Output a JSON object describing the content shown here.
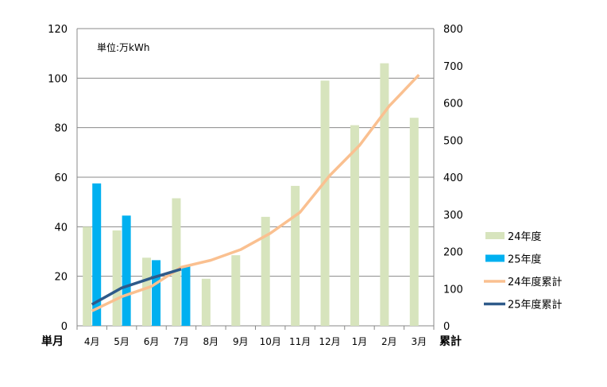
{
  "chart_data": {
    "type": "bar",
    "unit_note": "単位:万kWh",
    "x_left_label": "単月",
    "y_right_label": "累計",
    "categories": [
      "4月",
      "5月",
      "6月",
      "7月",
      "8月",
      "9月",
      "10月",
      "11月",
      "12月",
      "1月",
      "2月",
      "3月"
    ],
    "y_left": {
      "ylim": [
        0,
        120
      ],
      "ticks": [
        0,
        20,
        40,
        60,
        80,
        100,
        120
      ]
    },
    "y_right": {
      "ylim": [
        0,
        800
      ],
      "ticks": [
        0,
        100,
        200,
        300,
        400,
        500,
        600,
        700,
        800
      ]
    },
    "grid": true,
    "legend_position": "right",
    "series": [
      {
        "name": "24年度",
        "type": "bar",
        "axis": "left",
        "color": "#d7e4bd",
        "values": [
          40,
          38.5,
          27.5,
          51.5,
          19,
          28.5,
          44,
          56.5,
          99,
          81,
          106,
          84
        ]
      },
      {
        "name": "25年度",
        "type": "bar",
        "axis": "left",
        "color": "#00b0f0",
        "values": [
          57.5,
          44.5,
          26.5,
          24,
          null,
          null,
          null,
          null,
          null,
          null,
          null,
          null
        ]
      },
      {
        "name": "24年度累計",
        "type": "line",
        "axis": "right",
        "color": "#fac090",
        "values": [
          40,
          78.5,
          106,
          157.5,
          176.5,
          205,
          249,
          305.5,
          404.5,
          485.5,
          591.5,
          675.5
        ]
      },
      {
        "name": "25年度累計",
        "type": "line",
        "axis": "right",
        "color": "#2e5a8a",
        "values": [
          57.5,
          102,
          128.5,
          152.5,
          null,
          null,
          null,
          null,
          null,
          null,
          null,
          null
        ]
      }
    ]
  }
}
